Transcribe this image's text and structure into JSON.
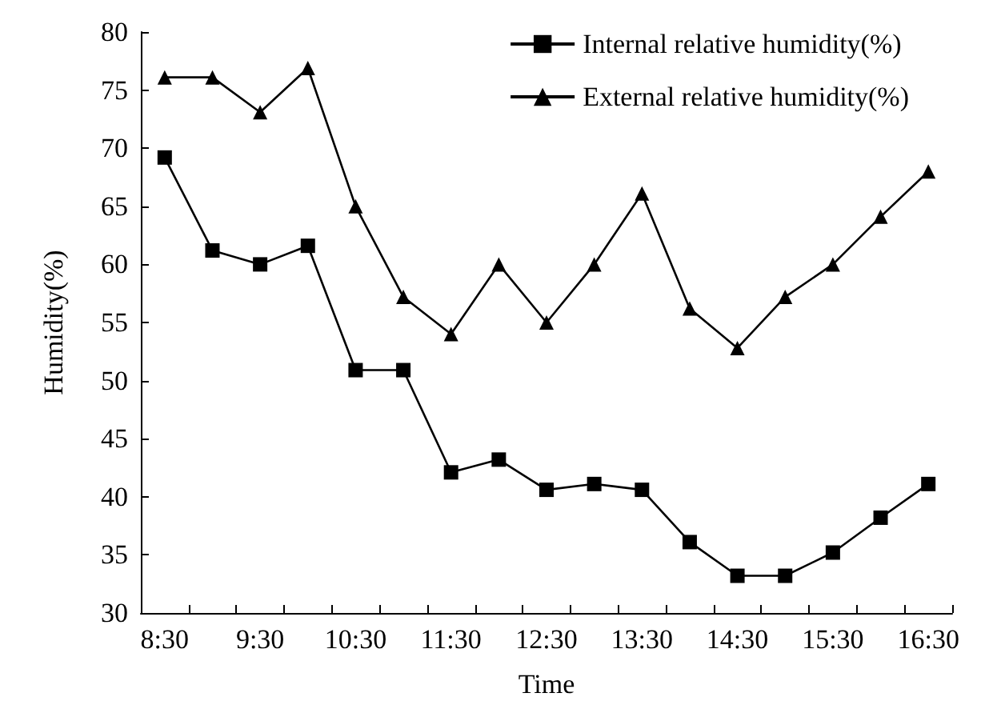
{
  "chart_data": {
    "type": "line",
    "xlabel": "Time",
    "ylabel": "Humidity(%)",
    "categories": [
      "8:30",
      null,
      "9:30",
      null,
      "10:30",
      null,
      "11:30",
      null,
      "12:30",
      null,
      "13:30",
      null,
      "14:30",
      null,
      "15:30",
      null,
      "16:30"
    ],
    "series": [
      {
        "name": "Internal relative humidity(%)",
        "color": "#000000",
        "marker": "square",
        "values": [
          69.2,
          61.2,
          60.0,
          61.6,
          50.9,
          50.9,
          42.1,
          43.2,
          40.6,
          41.1,
          40.6,
          36.1,
          33.2,
          33.2,
          35.2,
          38.2,
          41.1
        ]
      },
      {
        "name": "External relative humidity(%)",
        "color": "#000000",
        "marker": "triangle",
        "values": [
          76.1,
          76.1,
          73.1,
          76.9,
          65.0,
          57.2,
          54.0,
          60.0,
          55.0,
          60.0,
          66.1,
          56.2,
          52.8,
          57.2,
          60.0,
          64.1,
          68.0
        ]
      }
    ],
    "ylim": [
      30,
      80
    ],
    "yticks": [
      30,
      35,
      40,
      45,
      50,
      55,
      60,
      65,
      70,
      75,
      80
    ],
    "grid": false,
    "legend": "top right",
    "line_style": "solid"
  }
}
